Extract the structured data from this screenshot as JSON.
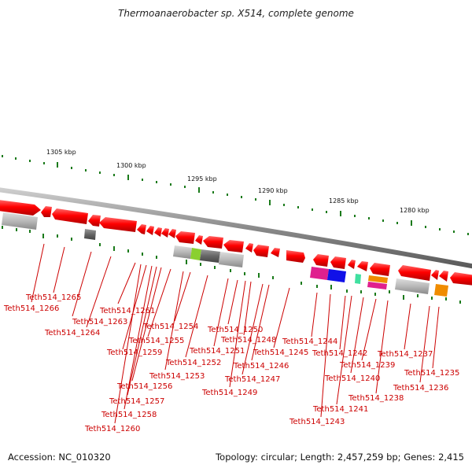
{
  "title": "Thermoanaerobacter sp. X514, complete genome",
  "accession": "Accession: NC_010320",
  "summary": "Topology: circular; Length: 2,457,259 bp; Genes: 2,415",
  "ruler_marks": [
    "1305 kbp",
    "1300 kbp",
    "1295 kbp",
    "1290 kbp",
    "1285 kbp",
    "1280 kbp"
  ],
  "gene_labels": [
    "Teth514_1265",
    "Teth514_1266",
    "Teth514_1264",
    "Teth514_1263",
    "Teth514_1261",
    "Teth514_1254",
    "Teth514_1255",
    "Teth514_1259",
    "Teth514_1256",
    "Teth514_1257",
    "Teth514_1258",
    "Teth514_1260",
    "Teth514_1253",
    "Teth514_1252",
    "Teth514_1251",
    "Teth514_1250",
    "Teth514_1248",
    "Teth514_1245",
    "Teth514_1246",
    "Teth514_1247",
    "Teth514_1249",
    "Teth514_1244",
    "Teth514_1242",
    "Teth514_1239",
    "Teth514_1240",
    "Teth514_1241",
    "Teth514_1243",
    "Teth514_1238",
    "Teth514_1237",
    "Teth514_1235",
    "Teth514_1236"
  ],
  "colors": {
    "gene_arrow": "#ff0000",
    "backbone": "#888888",
    "ruler_ticks": "#1a7a1a",
    "label_text": "#cc0000"
  }
}
